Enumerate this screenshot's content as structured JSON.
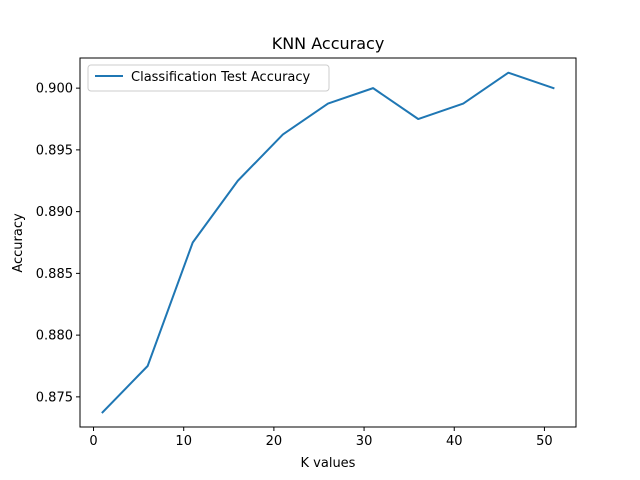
{
  "chart_data": {
    "type": "line",
    "title": "KNN Accuracy",
    "xlabel": "K values",
    "ylabel": "Accuracy",
    "x": [
      1,
      6,
      11,
      16,
      21,
      26,
      31,
      36,
      41,
      46,
      51
    ],
    "series": [
      {
        "name": "Classification Test Accuracy",
        "color": "#1f77b4",
        "values": [
          0.87375,
          0.8775,
          0.8875,
          0.8925,
          0.89625,
          0.89875,
          0.9,
          0.8975,
          0.89875,
          0.90125,
          0.9
        ]
      }
    ],
    "xlim": [
      -1.5,
      53.5
    ],
    "ylim": [
      0.87256,
      0.90244
    ],
    "xticks": [
      0,
      10,
      20,
      30,
      40,
      50
    ],
    "xtick_labels": [
      "0",
      "10",
      "20",
      "30",
      "40",
      "50"
    ],
    "yticks": [
      0.875,
      0.88,
      0.885,
      0.89,
      0.895,
      0.9
    ],
    "ytick_labels": [
      "0.875",
      "0.880",
      "0.885",
      "0.890",
      "0.895",
      "0.900"
    ],
    "grid": false,
    "legend_position": "upper-left"
  }
}
